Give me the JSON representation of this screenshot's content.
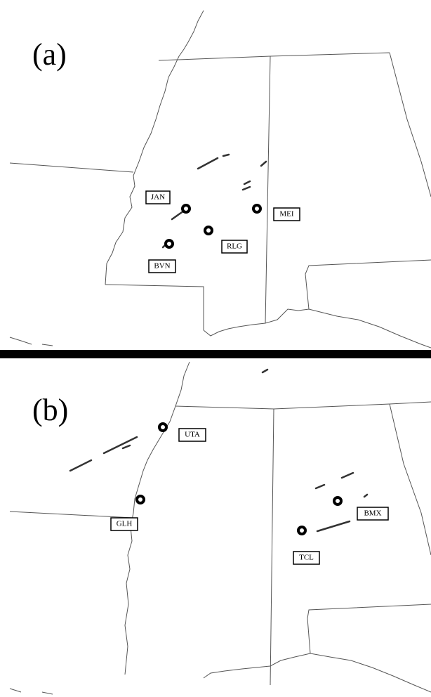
{
  "panels": [
    {
      "label": "(a)",
      "stations": [
        "JAN",
        "MEI",
        "RLG",
        "BVN"
      ]
    },
    {
      "label": "(b)",
      "stations": [
        "UTA",
        "GLH",
        "BMX",
        "TCL"
      ]
    }
  ]
}
